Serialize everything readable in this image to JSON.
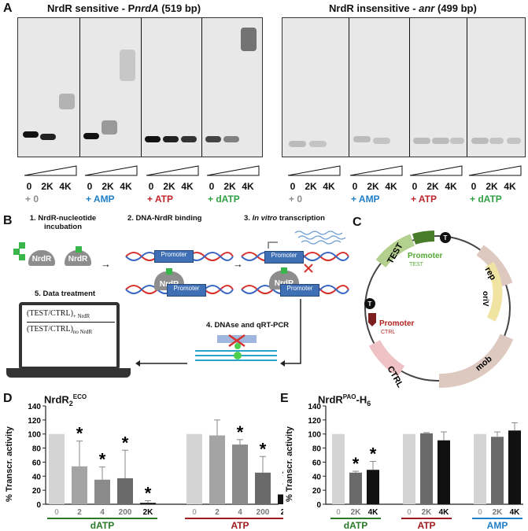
{
  "panel_a": {
    "label": "A",
    "left_title_prefix": "NrdR sensitive - P",
    "left_title_italic": "nrdA",
    "left_title_suffix": " (519 bp)",
    "right_title_prefix": "NrdR insensitive - ",
    "right_title_italic": "anr",
    "right_title_suffix": " (499 bp)",
    "dose_ticks": [
      "0",
      "2K",
      "4K"
    ],
    "conditions": [
      {
        "label": "+ 0",
        "color": "#8c8c8c"
      },
      {
        "label": "+ AMP",
        "color": "#1f7fc8"
      },
      {
        "label": "+ ATP",
        "color": "#c0242b"
      },
      {
        "label": "+ dATP",
        "color": "#2ea043"
      }
    ],
    "plain_ticks": [
      "0",
      "2K",
      "4K"
    ]
  },
  "panel_b": {
    "label": "B",
    "step1": "1. NrdR-nucleotide",
    "step1b": "incubation",
    "step2": "2. DNA-NrdR binding",
    "step3_prefix": "3. ",
    "step3_italic": "In vitro",
    "step3_suffix": " transcription",
    "step4": "4. DNAse and qRT-PCR",
    "step5": "5. Data treatment",
    "nrdr": "NrdR",
    "promoter": "Promoter",
    "formula_test": "TEST",
    "formula_ctrl": "CTRL",
    "formula_plus": "+ NrdR",
    "formula_no": "no NrdR"
  },
  "panel_c": {
    "label": "C",
    "test": "TEST",
    "rep": "rep",
    "oriv": "oriV",
    "ctrl": "CTRL",
    "mob": "mob",
    "promoter_test": "Promoter",
    "promoter_test_sub": "TEST",
    "promoter_ctrl": "Promoter",
    "promoter_ctrl_sub": "CTRL",
    "terminator": "T"
  },
  "panel_d": {
    "label": "D",
    "title": "NrdR",
    "title_sub": "2",
    "title_sup": "ECO",
    "ylabel": "% Transcr. activity"
  },
  "panel_e": {
    "label": "E",
    "title": "NrdR",
    "title_sup": "PAO",
    "title_suffix": "-H",
    "title_sub": "6",
    "ylabel": "% Transcr. activity"
  },
  "chart_data": [
    {
      "type": "bar",
      "panel": "D",
      "ylabel": "% Transcr. activity",
      "ylim": [
        0,
        140
      ],
      "yticks": [
        0,
        20,
        40,
        60,
        80,
        100,
        120,
        140
      ],
      "groups": [
        {
          "name": "dATP",
          "color": "#2a7a2a",
          "categories": [
            "0",
            "2",
            "4",
            "200",
            "2K"
          ],
          "values": [
            100,
            54,
            35,
            37,
            2
          ],
          "errors": [
            0,
            36,
            18,
            40,
            3
          ],
          "significant": [
            false,
            true,
            true,
            true,
            true
          ]
        },
        {
          "name": "ATP",
          "color": "#a01c22",
          "categories": [
            "0",
            "2",
            "4",
            "200",
            "2K"
          ],
          "values": [
            100,
            98,
            85,
            45,
            14
          ],
          "errors": [
            0,
            22,
            7,
            23,
            15
          ],
          "significant": [
            false,
            false,
            true,
            true,
            true
          ]
        }
      ]
    },
    {
      "type": "bar",
      "panel": "E",
      "ylabel": "% Transcr. activity",
      "ylim": [
        0,
        140
      ],
      "yticks": [
        0,
        20,
        40,
        60,
        80,
        100,
        120,
        140
      ],
      "groups": [
        {
          "name": "dATP",
          "color": "#2a7a2a",
          "categories": [
            "0",
            "2K",
            "4K"
          ],
          "values": [
            100,
            45,
            49
          ],
          "errors": [
            0,
            2,
            12
          ],
          "significant": [
            false,
            true,
            true
          ]
        },
        {
          "name": "ATP",
          "color": "#a01c22",
          "categories": [
            "0",
            "2K",
            "4K"
          ],
          "values": [
            100,
            101,
            91
          ],
          "errors": [
            0,
            1,
            12
          ],
          "significant": [
            false,
            false,
            false
          ]
        },
        {
          "name": "AMP",
          "color": "#1f7fc8",
          "categories": [
            "0",
            "2K",
            "4K"
          ],
          "values": [
            100,
            96,
            105
          ],
          "errors": [
            0,
            7,
            11
          ],
          "significant": [
            false,
            false,
            false
          ]
        }
      ]
    }
  ]
}
